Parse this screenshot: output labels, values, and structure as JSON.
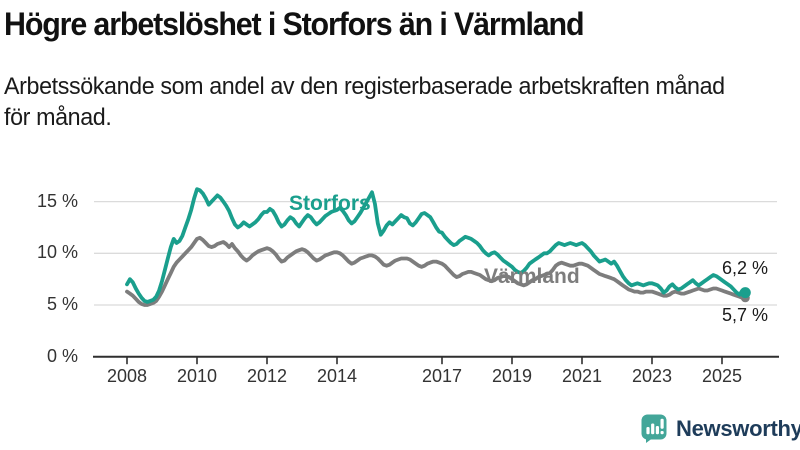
{
  "header": {
    "title": "Högre arbetslöshet i Storfors än i Värmland",
    "subtitle": "Arbetssökande som andel av den registerbaserade arbetskraften månad\nför månad."
  },
  "branding": {
    "logo_text": "Newsworthy",
    "logo_icon": "bar-chart-speech-bubble-icon",
    "logo_icon_color": "#43a699",
    "logo_text_color": "#1e3c5a"
  },
  "chart_data": {
    "type": "line",
    "title": "Högre arbetslöshet i Storfors än i Värmland",
    "x_unit": "month",
    "x_start": "2008-01",
    "x_end": "2025-09",
    "frequency": "monthly",
    "grid": "horizontal",
    "legend_position": "inline-labels",
    "ylim": [
      0,
      17
    ],
    "y_ticks": [
      0,
      5,
      10,
      15
    ],
    "y_tick_labels": [
      "0 %",
      "5 %",
      "10 %",
      "15 %"
    ],
    "x_tick_years": [
      2008,
      2010,
      2012,
      2014,
      2017,
      2019,
      2021,
      2023,
      2025
    ],
    "x_tick_labels": [
      "2008",
      "2010",
      "2012",
      "2014",
      "2017",
      "2019",
      "2021",
      "2023",
      "2025"
    ],
    "series": [
      {
        "name": "Storfors",
        "color": "#1a9f8d",
        "end_value": 6.2,
        "end_label": "6,2 %",
        "values": [
          7.0,
          7.5,
          7.2,
          6.6,
          6.1,
          5.7,
          5.4,
          5.3,
          5.4,
          5.5,
          5.8,
          6.4,
          7.3,
          8.4,
          9.5,
          10.6,
          11.4,
          11.0,
          11.2,
          11.7,
          12.5,
          13.3,
          14.2,
          15.3,
          16.2,
          16.1,
          15.8,
          15.3,
          14.7,
          15.0,
          15.3,
          15.6,
          15.4,
          15.0,
          14.6,
          14.1,
          13.4,
          12.8,
          12.5,
          12.7,
          13.0,
          12.8,
          12.6,
          12.8,
          13.0,
          13.3,
          13.7,
          14.0,
          14.0,
          14.3,
          14.1,
          13.6,
          13.0,
          12.6,
          12.8,
          13.2,
          13.5,
          13.3,
          12.9,
          12.6,
          13.0,
          13.4,
          13.7,
          13.5,
          13.1,
          12.8,
          13.0,
          13.3,
          13.6,
          13.8,
          14.0,
          14.1,
          14.2,
          14.4,
          14.1,
          13.7,
          13.2,
          12.9,
          13.1,
          13.5,
          13.9,
          14.4,
          14.9,
          15.4,
          15.9,
          14.8,
          12.9,
          11.8,
          12.2,
          12.7,
          13.0,
          12.8,
          13.1,
          13.4,
          13.7,
          13.5,
          13.4,
          12.9,
          12.7,
          13.0,
          13.4,
          13.8,
          13.9,
          13.7,
          13.5,
          13.0,
          12.5,
          12.1,
          12.0,
          11.6,
          11.3,
          11.0,
          10.8,
          10.9,
          11.2,
          11.4,
          11.6,
          11.5,
          11.4,
          11.2,
          11.0,
          10.7,
          10.3,
          10.0,
          9.8,
          10.0,
          10.1,
          9.9,
          9.6,
          9.3,
          9.1,
          8.9,
          8.7,
          8.4,
          8.2,
          8.1,
          8.3,
          8.6,
          9.0,
          9.2,
          9.4,
          9.6,
          9.8,
          10.0,
          10.0,
          10.2,
          10.5,
          10.8,
          11.0,
          10.9,
          10.8,
          10.9,
          11.0,
          10.9,
          10.8,
          10.9,
          11.0,
          10.8,
          10.5,
          10.2,
          9.8,
          9.5,
          9.2,
          9.3,
          9.4,
          9.2,
          9.0,
          9.2,
          8.8,
          8.3,
          7.8,
          7.4,
          7.1,
          6.9,
          7.0,
          7.1,
          7.0,
          6.9,
          7.0,
          7.1,
          7.1,
          7.0,
          6.9,
          6.6,
          6.2,
          6.4,
          6.8,
          7.0,
          6.7,
          6.5,
          6.6,
          6.8,
          7.0,
          7.2,
          7.4,
          7.1,
          6.9,
          7.1,
          7.3,
          7.5,
          7.7,
          7.9,
          7.8,
          7.6,
          7.4,
          7.2,
          7.0,
          6.8,
          6.5,
          6.2,
          6.0,
          6.4,
          6.2
        ]
      },
      {
        "name": "Värmland",
        "color": "#7d7d7d",
        "end_value": 5.7,
        "end_label": "5,7 %",
        "values": [
          6.3,
          6.1,
          5.9,
          5.6,
          5.3,
          5.1,
          5.0,
          5.0,
          5.1,
          5.2,
          5.4,
          5.8,
          6.3,
          6.9,
          7.5,
          8.1,
          8.7,
          9.1,
          9.4,
          9.7,
          10.0,
          10.3,
          10.6,
          11.0,
          11.4,
          11.5,
          11.3,
          11.0,
          10.7,
          10.6,
          10.7,
          10.9,
          11.0,
          11.1,
          10.9,
          10.6,
          10.9,
          10.5,
          10.2,
          9.8,
          9.5,
          9.3,
          9.5,
          9.8,
          10.0,
          10.2,
          10.3,
          10.4,
          10.5,
          10.4,
          10.2,
          9.9,
          9.5,
          9.2,
          9.3,
          9.6,
          9.8,
          10.0,
          10.2,
          10.3,
          10.4,
          10.3,
          10.1,
          9.8,
          9.5,
          9.3,
          9.4,
          9.6,
          9.8,
          9.9,
          10.0,
          10.1,
          10.1,
          10.0,
          9.8,
          9.5,
          9.2,
          9.0,
          9.1,
          9.3,
          9.5,
          9.6,
          9.7,
          9.8,
          9.8,
          9.7,
          9.5,
          9.2,
          8.9,
          8.8,
          8.9,
          9.1,
          9.3,
          9.4,
          9.5,
          9.5,
          9.5,
          9.4,
          9.2,
          9.0,
          8.8,
          8.7,
          8.8,
          9.0,
          9.1,
          9.2,
          9.2,
          9.1,
          9.0,
          8.8,
          8.5,
          8.2,
          7.9,
          7.7,
          7.8,
          8.0,
          8.1,
          8.2,
          8.2,
          8.1,
          8.0,
          7.9,
          7.7,
          7.5,
          7.4,
          7.3,
          7.4,
          7.6,
          7.7,
          7.8,
          7.8,
          7.7,
          7.5,
          7.3,
          7.1,
          7.0,
          6.9,
          7.0,
          7.2,
          7.4,
          7.5,
          7.7,
          7.8,
          7.9,
          8.0,
          8.1,
          8.4,
          8.8,
          9.0,
          9.1,
          9.0,
          8.9,
          8.8,
          8.8,
          8.9,
          9.0,
          9.0,
          8.9,
          8.8,
          8.6,
          8.4,
          8.2,
          8.0,
          7.9,
          7.8,
          7.7,
          7.6,
          7.5,
          7.3,
          7.1,
          6.9,
          6.7,
          6.5,
          6.4,
          6.3,
          6.3,
          6.2,
          6.2,
          6.3,
          6.3,
          6.3,
          6.2,
          6.1,
          6.0,
          5.9,
          5.9,
          6.0,
          6.2,
          6.3,
          6.2,
          6.1,
          6.1,
          6.2,
          6.3,
          6.4,
          6.5,
          6.6,
          6.5,
          6.4,
          6.4,
          6.5,
          6.6,
          6.6,
          6.5,
          6.4,
          6.3,
          6.2,
          6.1,
          6.0,
          5.9,
          5.8,
          5.7,
          5.7
        ]
      }
    ]
  }
}
